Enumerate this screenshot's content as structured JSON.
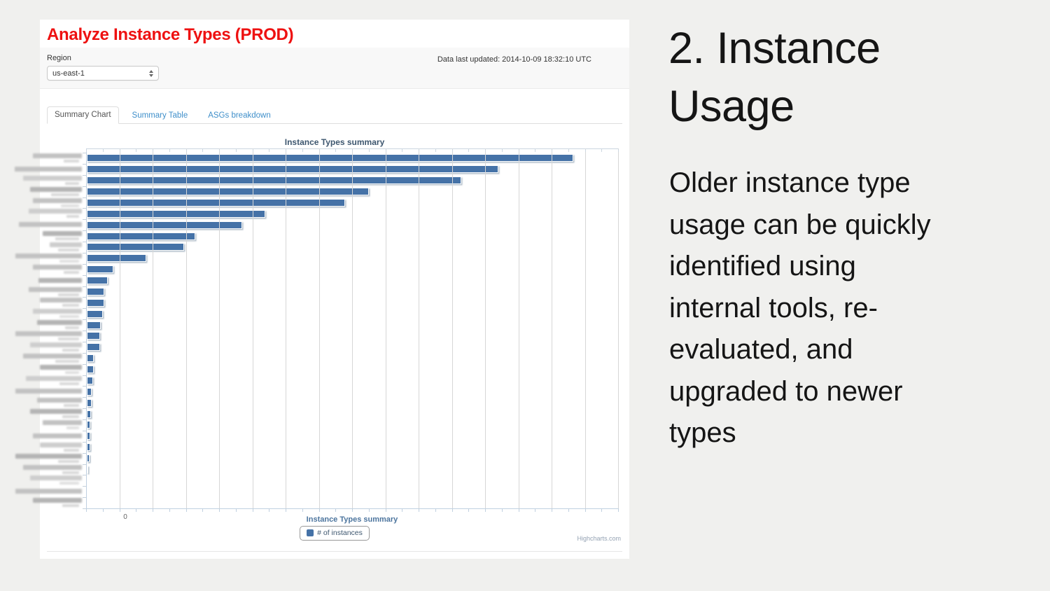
{
  "slide": {
    "background_color": "#f0f0ee",
    "heading_lines": [
      "2. Instance",
      "Usage"
    ],
    "body_lines": [
      "Older instance type",
      "usage can be quickly",
      "identified using",
      "internal tools, re-",
      "evaluated, and",
      "upgraded to newer",
      "types"
    ]
  },
  "app": {
    "title": "Analyze Instance Types (PROD)",
    "title_color": "#ee1111",
    "region_label": "Region",
    "region_value": "us-east-1",
    "last_updated": "Data last updated: 2014-10-09 18:32:10 UTC",
    "tab_link_color": "#3f8fca",
    "tabs": [
      {
        "label": "Summary Chart",
        "active": true
      },
      {
        "label": "Summary Table",
        "active": false
      },
      {
        "label": "ASGs breakdown",
        "active": false
      }
    ]
  },
  "chart_data": {
    "type": "bar",
    "orientation": "horizontal",
    "title": "Instance Types summary",
    "xlabel": "Instance Types summary",
    "legend": [
      "# of instances"
    ],
    "legend_position": "bottom-center",
    "bar_color": "#4572A7",
    "grid": true,
    "credit": "Highcharts.com",
    "x_axis": {
      "visible_tick_label": "0",
      "note": "only the 0 tick label is visible; values are stored as percent of the full axis span",
      "xlim_pct": [
        0,
        100
      ]
    },
    "categories_note": "All 32 y-axis category labels (instance type names) are blurred/redacted in the screenshot; label_w/sub_w give the pixel widths of the blurred blobs",
    "rows": [
      {
        "value_pct": 91.4,
        "label_w": 70,
        "sub_w": 22
      },
      {
        "value_pct": 77.4,
        "label_w": 96,
        "sub_w": 0
      },
      {
        "value_pct": 70.4,
        "label_w": 84,
        "sub_w": 20
      },
      {
        "value_pct": 53.0,
        "label_w": 74,
        "sub_w": 40
      },
      {
        "value_pct": 48.6,
        "label_w": 70,
        "sub_w": 26
      },
      {
        "value_pct": 33.6,
        "label_w": 76,
        "sub_w": 18
      },
      {
        "value_pct": 29.2,
        "label_w": 90,
        "sub_w": 0
      },
      {
        "value_pct": 20.4,
        "label_w": 56,
        "sub_w": 34
      },
      {
        "value_pct": 18.3,
        "label_w": 46,
        "sub_w": 30
      },
      {
        "value_pct": 11.2,
        "label_w": 95,
        "sub_w": 28
      },
      {
        "value_pct": 5.0,
        "label_w": 70,
        "sub_w": 22
      },
      {
        "value_pct": 3.9,
        "label_w": 62,
        "sub_w": 0
      },
      {
        "value_pct": 3.3,
        "label_w": 76,
        "sub_w": 30
      },
      {
        "value_pct": 3.3,
        "label_w": 60,
        "sub_w": 24
      },
      {
        "value_pct": 3.0,
        "label_w": 70,
        "sub_w": 28
      },
      {
        "value_pct": 2.6,
        "label_w": 64,
        "sub_w": 20
      },
      {
        "value_pct": 2.5,
        "label_w": 95,
        "sub_w": 30
      },
      {
        "value_pct": 2.5,
        "label_w": 74,
        "sub_w": 24
      },
      {
        "value_pct": 1.3,
        "label_w": 84,
        "sub_w": 34
      },
      {
        "value_pct": 1.3,
        "label_w": 60,
        "sub_w": 20
      },
      {
        "value_pct": 1.2,
        "label_w": 80,
        "sub_w": 28
      },
      {
        "value_pct": 0.9,
        "label_w": 95,
        "sub_w": 0
      },
      {
        "value_pct": 0.9,
        "label_w": 64,
        "sub_w": 22
      },
      {
        "value_pct": 0.8,
        "label_w": 74,
        "sub_w": 24
      },
      {
        "value_pct": 0.7,
        "label_w": 56,
        "sub_w": 18
      },
      {
        "value_pct": 0.7,
        "label_w": 70,
        "sub_w": 0
      },
      {
        "value_pct": 0.6,
        "label_w": 60,
        "sub_w": 22
      },
      {
        "value_pct": 0.5,
        "label_w": 95,
        "sub_w": 30
      },
      {
        "value_pct": 0.25,
        "label_w": 84,
        "sub_w": 24
      },
      {
        "value_pct": 0,
        "label_w": 74,
        "sub_w": 28
      },
      {
        "value_pct": 0,
        "label_w": 95,
        "sub_w": 0
      },
      {
        "value_pct": 0,
        "label_w": 70,
        "sub_w": 24
      }
    ]
  }
}
